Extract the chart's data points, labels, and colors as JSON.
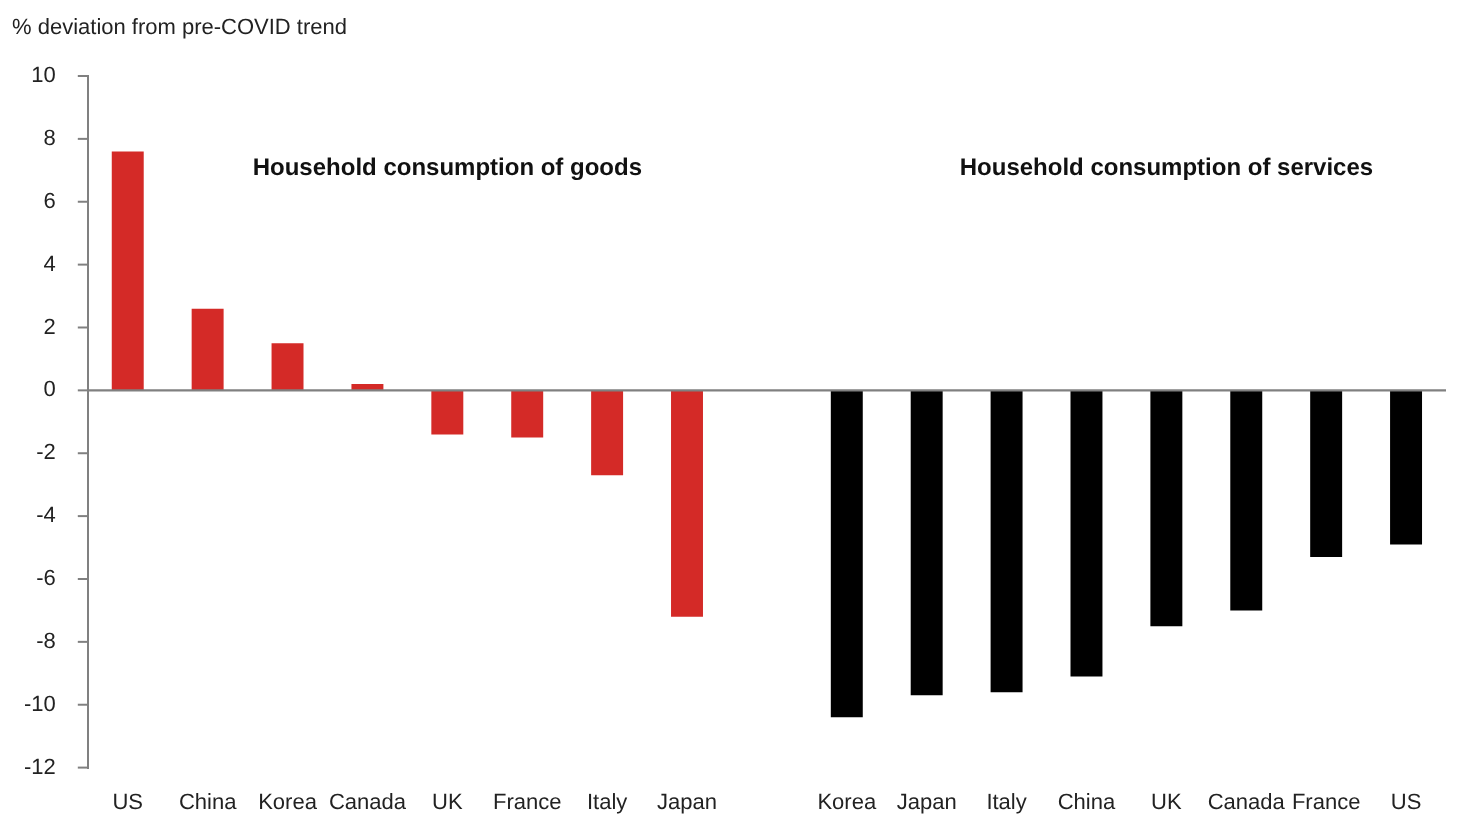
{
  "chart_data": {
    "type": "bar",
    "ylabel": "% deviation from pre-COVID trend",
    "annotations": [
      "Household consumption of goods",
      "Household consumption of services"
    ],
    "categories": [
      "US",
      "China",
      "Korea",
      "Canada",
      "UK",
      "France",
      "Italy",
      "Japan",
      null,
      "Korea",
      "Japan",
      "Italy",
      "China",
      "UK",
      "Canada",
      "France",
      "US"
    ],
    "values": [
      7.6,
      2.6,
      1.5,
      0.2,
      -1.4,
      -1.5,
      -2.7,
      -7.2,
      null,
      -10.4,
      -9.7,
      -9.6,
      -9.1,
      -7.5,
      -7.0,
      -5.3,
      -4.9
    ],
    "colors": [
      "#d42a27",
      "#d42a27",
      "#d42a27",
      "#d42a27",
      "#d42a27",
      "#d42a27",
      "#d42a27",
      "#d42a27",
      "#000000",
      "#000000",
      "#000000",
      "#000000",
      "#000000",
      "#000000",
      "#000000",
      "#000000",
      "#000000"
    ],
    "ylim": [
      -12,
      10
    ],
    "yticks": [
      -12,
      -10,
      -8,
      -6,
      -4,
      -2,
      0,
      2,
      4,
      6,
      8,
      10
    ],
    "ref_lines": [
      {
        "axis": "y",
        "value": 0,
        "color": "#808080"
      }
    ],
    "grid": false,
    "legend": false
  }
}
